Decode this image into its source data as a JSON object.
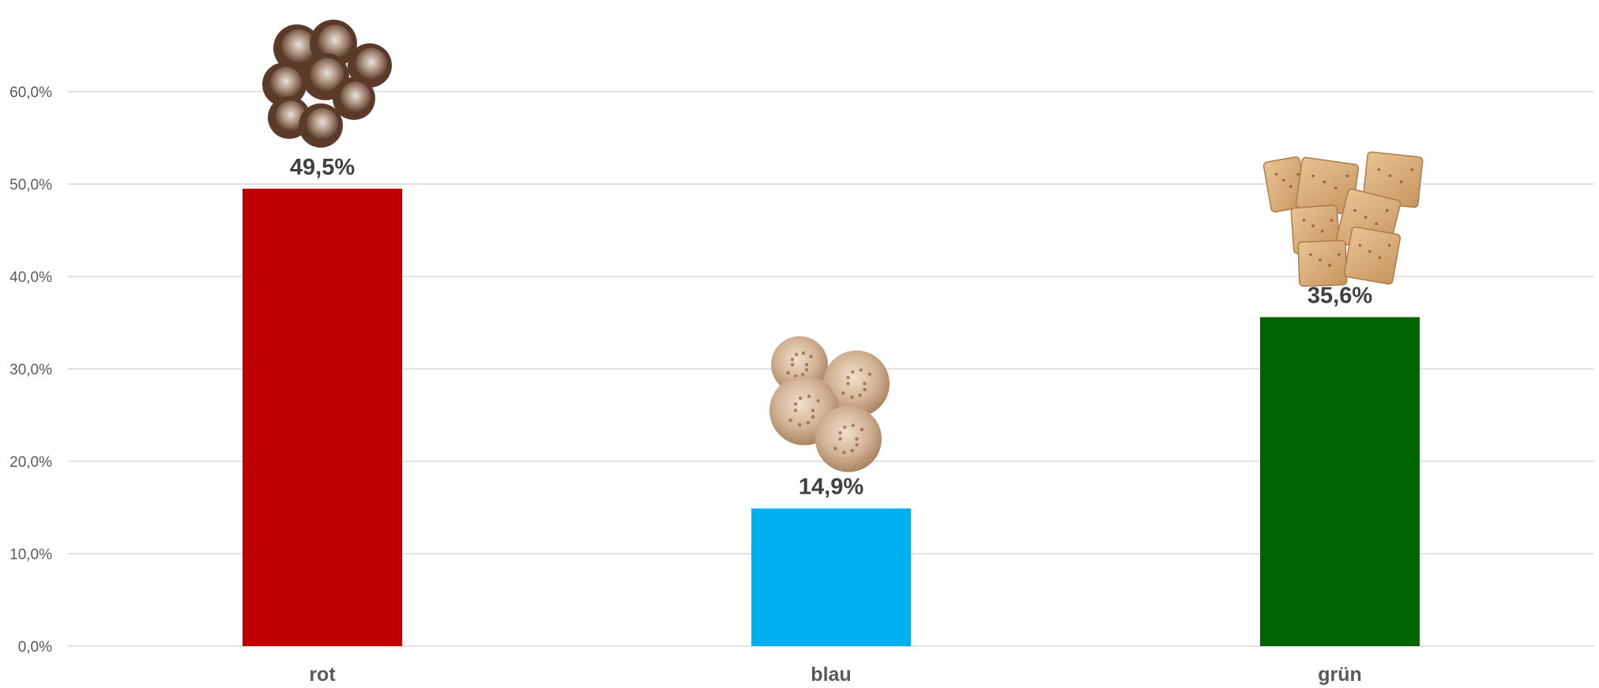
{
  "chart_data": {
    "type": "bar",
    "categories": [
      "rot",
      "blau",
      "grün"
    ],
    "values": [
      49.5,
      14.9,
      35.6
    ],
    "value_labels": [
      "49,5%",
      "14,9%",
      "35,6%"
    ],
    "colors": [
      "#c00000",
      "#00b0f0",
      "#006400"
    ],
    "icons": [
      "chocolate-cookies-icon",
      "oat-cookies-icon",
      "square-crackers-icon"
    ],
    "ylim": [
      0,
      60
    ],
    "yticks": [
      0,
      10,
      20,
      30,
      40,
      50,
      60
    ],
    "ytick_labels": [
      "0,0%",
      "10,0%",
      "20,0%",
      "30,0%",
      "40,0%",
      "50,0%",
      "60,0%"
    ],
    "grid": true,
    "title": "",
    "xlabel": "",
    "ylabel": ""
  }
}
